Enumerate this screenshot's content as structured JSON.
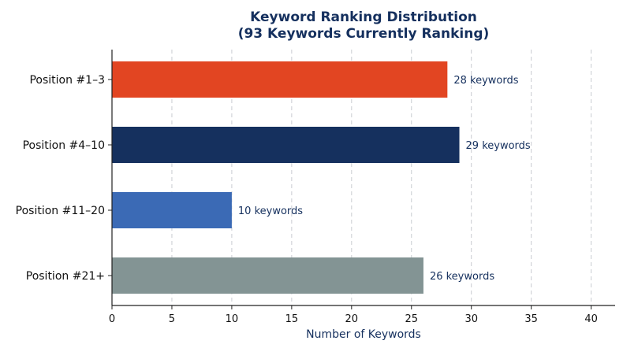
{
  "chart_data": {
    "type": "bar",
    "orientation": "horizontal",
    "title_line1": "Keyword Ranking Distribution",
    "title_line2": "(93 Keywords Currently Ranking)",
    "xlabel": "Number of Keywords",
    "ylabel": "",
    "xlim": [
      0,
      42
    ],
    "xticks": [
      0,
      5,
      10,
      15,
      20,
      25,
      30,
      35,
      40
    ],
    "grid": "vertical dashed",
    "categories": [
      "Position #1–3",
      "Position #4–10",
      "Position #11–20",
      "Position #21+"
    ],
    "values": [
      28,
      29,
      10,
      26
    ],
    "data_labels": [
      "28 keywords",
      "29 keywords",
      "10 keywords",
      "26 keywords"
    ],
    "colors": [
      "#e24522",
      "#15305e",
      "#3b6ab5",
      "#839494"
    ]
  }
}
